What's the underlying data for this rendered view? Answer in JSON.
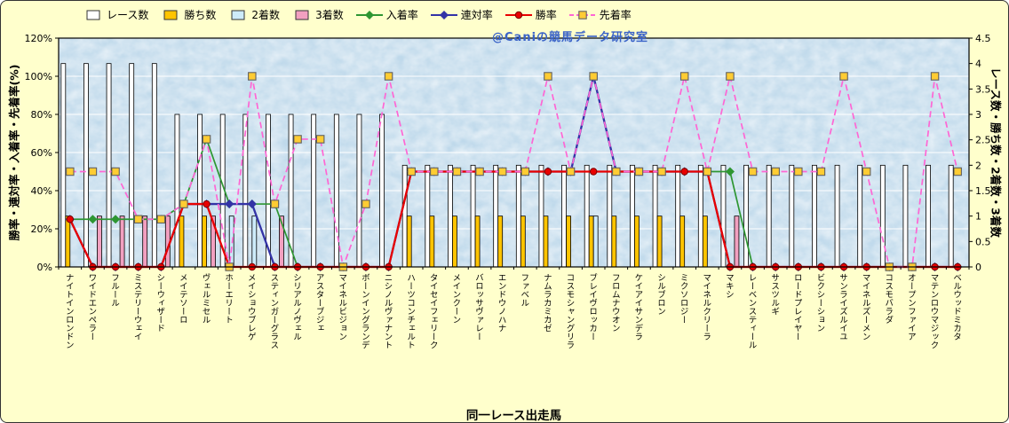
{
  "watermark": "@Caniの競馬データ研究室",
  "colors": {
    "background": "#FFFFCC",
    "plot_background": "#BFD9EB",
    "gridline": "#FFFFFF",
    "plot_border": "#000000",
    "watermark_text": "#3A63C8"
  },
  "chart_data": {
    "type": "combo-bar-line",
    "title": "",
    "legend_position": "top",
    "grid": true,
    "x_axis": {
      "label": "同一レース出走馬"
    },
    "left_axis": {
      "label": "勝率・連対率・入着率・先着率(%)",
      "range": [
        0,
        120
      ],
      "ticks": [
        0,
        20,
        40,
        60,
        80,
        100,
        120
      ],
      "tick_suffix": "%"
    },
    "right_axis": {
      "label": "レース数・勝ち数・2着数・3着数",
      "range": [
        0,
        4.5
      ],
      "ticks": [
        0,
        0.5,
        1,
        1.5,
        2,
        2.5,
        3,
        3.5,
        4,
        4.5
      ]
    },
    "categories": [
      "ナイトインロンドン",
      "ワイドエンペラー",
      "フルール",
      "ミステリーウェイ",
      "シーウィザード",
      "メイテソーロ",
      "ヴェルミセル",
      "ホーエリート",
      "メイショウブレゲ",
      "スティンガーグラス",
      "シリアルノヴェル",
      "アスターブジェ",
      "マイネルビジョン",
      "ボーンイングランデ",
      "ニシノルヴァナント",
      "ハーツコンチェルト",
      "タイセイフェリーク",
      "メインクーン",
      "バロッサヴァレー",
      "エンドウノハナ",
      "ファベル",
      "ナムラカミカゼ",
      "コスモシャングリラ",
      "ブレイヴロッカー",
      "フロムナウオン",
      "ケイアイサンデラ",
      "シルブロン",
      "ミクソロジー",
      "マイネルクリーラ",
      "マキシ",
      "レーベンスティール",
      "サスツルギ",
      "ロードプレイヤー",
      "ビクシーション",
      "サンライズルイユ",
      "マイネルズーメン",
      "コスモバラダ",
      "オープンファイア",
      "マテンロウマジック",
      "ベルウッドミカタ"
    ],
    "series": [
      {
        "key": "races",
        "label": "レース数",
        "kind": "bar",
        "axis": "right",
        "color": "#FFFFFF",
        "values": [
          4,
          4,
          4,
          4,
          4,
          3,
          3,
          3,
          3,
          3,
          3,
          3,
          3,
          3,
          3,
          2,
          2,
          2,
          2,
          2,
          2,
          2,
          2,
          2,
          2,
          2,
          2,
          2,
          2,
          2,
          2,
          2,
          2,
          2,
          2,
          2,
          2,
          2,
          2,
          2
        ]
      },
      {
        "key": "wins",
        "label": "勝ち数",
        "kind": "bar",
        "axis": "right",
        "color": "#FFC400",
        "values": [
          1,
          0,
          0,
          0,
          0,
          1,
          1,
          0,
          0,
          0,
          0,
          0,
          0,
          0,
          0,
          1,
          1,
          1,
          1,
          1,
          1,
          1,
          1,
          1,
          1,
          1,
          1,
          1,
          1,
          0,
          0,
          0,
          0,
          0,
          0,
          0,
          0,
          0,
          0,
          0
        ]
      },
      {
        "key": "seconds",
        "label": "2着数",
        "kind": "bar",
        "axis": "right",
        "color": "#CDEBFA",
        "values": [
          0,
          0,
          0,
          0,
          0,
          0,
          0,
          1,
          1,
          0,
          0,
          0,
          0,
          0,
          0,
          0,
          0,
          0,
          0,
          0,
          0,
          0,
          0,
          1,
          0,
          0,
          0,
          0,
          0,
          0,
          0,
          0,
          0,
          0,
          0,
          0,
          0,
          0,
          0,
          0
        ]
      },
      {
        "key": "thirds",
        "label": "3着数",
        "kind": "bar",
        "axis": "right",
        "color": "#F2A0C0",
        "values": [
          0,
          1,
          1,
          1,
          1,
          0,
          1,
          0,
          0,
          1,
          0,
          0,
          0,
          0,
          0,
          0,
          0,
          0,
          0,
          0,
          0,
          0,
          0,
          0,
          0,
          0,
          0,
          0,
          0,
          1,
          0,
          0,
          0,
          0,
          0,
          0,
          0,
          0,
          0,
          0
        ]
      },
      {
        "key": "placing-rate",
        "label": "入着率",
        "kind": "line",
        "marker": "diamond",
        "dash": false,
        "axis": "left",
        "color": "#2E9632",
        "values": [
          25,
          25,
          25,
          25,
          25,
          33,
          67,
          33,
          33,
          33,
          0,
          0,
          0,
          0,
          0,
          50,
          50,
          50,
          50,
          50,
          50,
          50,
          50,
          100,
          50,
          50,
          50,
          50,
          50,
          50,
          0,
          0,
          0,
          0,
          0,
          0,
          0,
          0,
          0,
          0
        ]
      },
      {
        "key": "quinella-rate",
        "label": "連対率",
        "kind": "line",
        "marker": "diamond",
        "dash": false,
        "axis": "left",
        "color": "#3333A6",
        "values": [
          25,
          0,
          0,
          0,
          0,
          33,
          33,
          33,
          33,
          0,
          0,
          0,
          0,
          0,
          0,
          50,
          50,
          50,
          50,
          50,
          50,
          50,
          50,
          100,
          50,
          50,
          50,
          50,
          50,
          0,
          0,
          0,
          0,
          0,
          0,
          0,
          0,
          0,
          0,
          0
        ]
      },
      {
        "key": "win-rate",
        "label": "勝率",
        "kind": "line",
        "marker": "circle",
        "dash": false,
        "axis": "left",
        "color": "#E80000",
        "values": [
          25,
          0,
          0,
          0,
          0,
          33,
          33,
          0,
          0,
          0,
          0,
          0,
          0,
          0,
          0,
          50,
          50,
          50,
          50,
          50,
          50,
          50,
          50,
          50,
          50,
          50,
          50,
          50,
          50,
          0,
          0,
          0,
          0,
          0,
          0,
          0,
          0,
          0,
          0,
          0
        ]
      },
      {
        "key": "finish-ahead-rate",
        "label": "先着率",
        "kind": "line",
        "marker": "square",
        "marker_color": "#FFCC33",
        "dash": true,
        "axis": "left",
        "color": "#FF66D4",
        "values": [
          50,
          50,
          50,
          25,
          25,
          33,
          67,
          0,
          100,
          33,
          67,
          67,
          0,
          33,
          100,
          50,
          50,
          50,
          50,
          50,
          50,
          100,
          50,
          100,
          50,
          50,
          50,
          100,
          50,
          100,
          50,
          50,
          50,
          50,
          100,
          50,
          0,
          0,
          100,
          50
        ]
      }
    ]
  }
}
